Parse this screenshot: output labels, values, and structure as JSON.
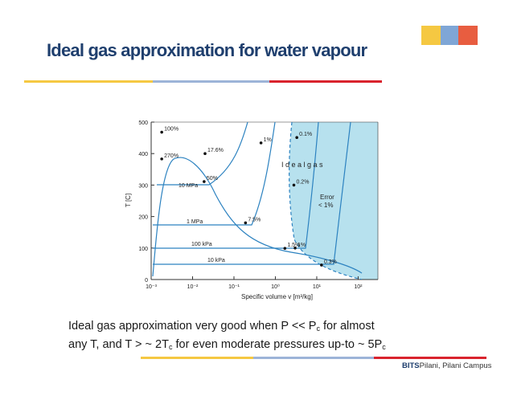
{
  "slide": {
    "title": "Ideal gas approximation for water vapour",
    "footer_brand_bold": "BITS",
    "footer_brand_rest": "Pilani, Pilani Campus"
  },
  "caption": {
    "line1_a": "Ideal gas approximation very good when P << P",
    "line1_sub": "c",
    "line1_b": " for almost",
    "line2_a": "any T, and T > ~ 2T",
    "line2_sub": "c",
    "line2_b": " for even moderate pressures up-to ~ 5P",
    "line2_sub2": "c"
  },
  "colors": {
    "title": "#1f3f6e",
    "accent_yellow": "#f5c842",
    "accent_blue": "#9db4d8",
    "accent_red": "#d9232d",
    "ideal_region": "#b7e1ee",
    "curve": "#2c82c0"
  },
  "chart_data": {
    "type": "line",
    "xlabel": "Specific volume v [m³/kg]",
    "ylabel": "T [C]",
    "xscale": "log",
    "xlim": [
      0.001,
      300
    ],
    "ylim": [
      0,
      500
    ],
    "x_ticks": [
      "10⁻³",
      "10⁻²",
      "10⁻¹",
      "10⁰",
      "10¹",
      "10²"
    ],
    "y_ticks": [
      "0",
      "100",
      "200",
      "300",
      "400",
      "500"
    ],
    "region_label": "I d e a l   g a s",
    "error_label": [
      "Error",
      "< 1%"
    ],
    "isobars": [
      {
        "name": "10 MPa",
        "label_v": 0.0022,
        "label_T": 322
      },
      {
        "name": "1 MPa",
        "label_v": 0.006,
        "label_T": 186
      },
      {
        "name": "100 kPa",
        "label_v": 0.012,
        "label_T": 109
      },
      {
        "name": "10 kPa",
        "label_v": 0.01,
        "label_T": 52
      }
    ],
    "error_points": [
      {
        "label": "100%",
        "v": 0.0018,
        "T": 468
      },
      {
        "label": "270%",
        "v": 0.0018,
        "T": 383
      },
      {
        "label": "17.6%",
        "v": 0.02,
        "T": 400
      },
      {
        "label": "50%",
        "v": 0.019,
        "T": 311
      },
      {
        "label": "7.5%",
        "v": 0.19,
        "T": 180
      },
      {
        "label": "1.5%",
        "v": 1.7,
        "T": 99
      },
      {
        "label": "1%",
        "v": 0.45,
        "T": 434
      },
      {
        "label": "0.1%",
        "v": 3.3,
        "T": 451
      },
      {
        "label": "0.2%",
        "v": 2.8,
        "T": 300
      },
      {
        "label": "1%",
        "v": 3.0,
        "T": 100
      },
      {
        "label": "0.3%",
        "v": 13.0,
        "T": 46
      }
    ]
  }
}
